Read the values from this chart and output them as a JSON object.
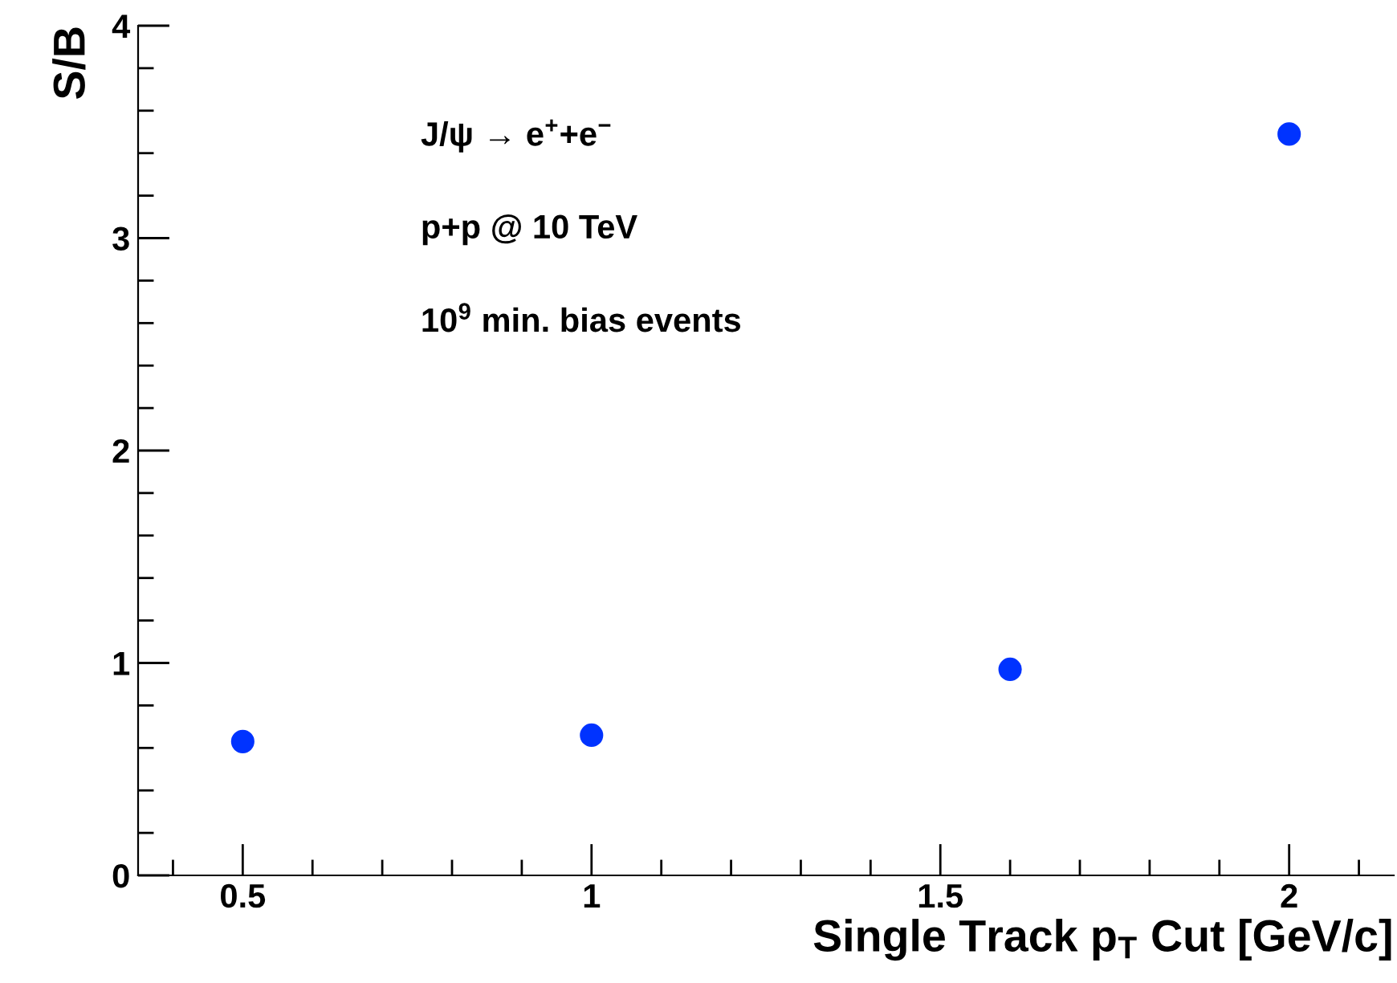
{
  "chart_data": {
    "type": "scatter",
    "xlabel": "Single Track p$_{T}$ Cut [GeV/c]",
    "ylabel": "S/B",
    "x": [
      0.5,
      1,
      1.6,
      2
    ],
    "series": [
      {
        "color": "#0033ff",
        "values": [
          0.63,
          0.66,
          0.97,
          3.49
        ]
      }
    ],
    "marker": "circle",
    "grid": false,
    "xlim": [
      0.35,
      2.15
    ],
    "xticks": [
      {
        "value": 0.4,
        "label": null
      },
      0.5,
      {
        "value": 0.6,
        "label": null
      },
      {
        "value": 0.7,
        "label": null
      },
      {
        "value": 0.8,
        "label": null
      },
      {
        "value": 0.9,
        "label": null
      },
      1,
      {
        "value": 1.1,
        "label": null
      },
      {
        "value": 1.2,
        "label": null
      },
      {
        "value": 1.3,
        "label": null
      },
      {
        "value": 1.4,
        "label": null
      },
      1.5,
      {
        "value": 1.6,
        "label": null
      },
      {
        "value": 1.7,
        "label": null
      },
      {
        "value": 1.8,
        "label": null
      },
      {
        "value": 1.9,
        "label": null
      },
      2,
      {
        "value": 2.1,
        "label": null
      }
    ],
    "ylim": [
      0,
      4
    ],
    "yticks": [
      0,
      {
        "value": 0.2,
        "label": null
      },
      {
        "value": 0.4,
        "label": null
      },
      {
        "value": 0.6,
        "label": null
      },
      {
        "value": 0.8,
        "label": null
      },
      1,
      {
        "value": 1.2,
        "label": null
      },
      {
        "value": 1.4,
        "label": null
      },
      {
        "value": 1.6,
        "label": null
      },
      {
        "value": 1.8,
        "label": null
      },
      2,
      {
        "value": 2.2,
        "label": null
      },
      {
        "value": 2.4,
        "label": null
      },
      {
        "value": 2.6,
        "label": null
      },
      {
        "value": 2.8,
        "label": null
      },
      3,
      {
        "value": 3.2,
        "label": null
      },
      {
        "value": 3.4,
        "label": null
      },
      {
        "value": 3.6,
        "label": null
      },
      {
        "value": 3.8,
        "label": null
      },
      4
    ],
    "annotations": [
      "J/ψ → e$^{+}$+e$^{−}$",
      "p+p @ 10 TeV",
      "10$^{9}$ min. bias events"
    ]
  }
}
